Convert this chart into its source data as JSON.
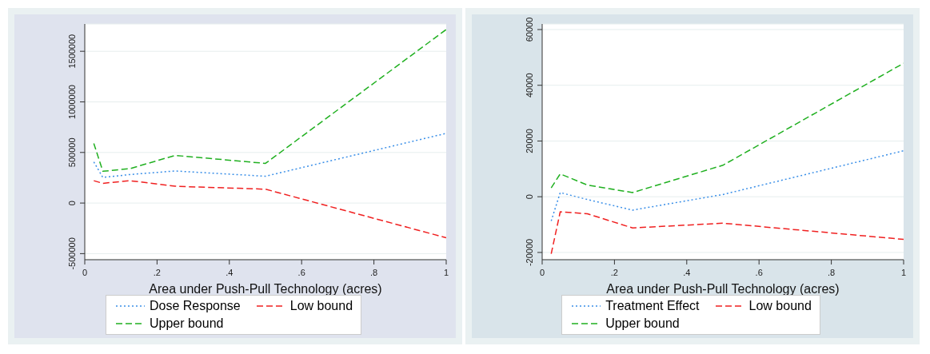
{
  "chart_data": [
    {
      "type": "line",
      "xlabel": "Area under Push-Pull Technology (acres)",
      "x": [
        0.025,
        0.05,
        0.125,
        0.25,
        0.5,
        1
      ],
      "xlim": [
        0,
        1
      ],
      "xticks": [
        {
          "value": 0,
          "label": "0"
        },
        {
          "value": 0.2,
          "label": ".2"
        },
        {
          "value": 0.4,
          "label": ".4"
        },
        {
          "value": 0.6,
          "label": ".6"
        },
        {
          "value": 0.8,
          "label": ".8"
        },
        1
      ],
      "ylim": [
        -560000,
        1770000
      ],
      "yticks": [
        -500000,
        0,
        500000,
        1000000,
        1500000
      ],
      "grid": "y",
      "legend": "bottom",
      "marker": "none",
      "series": [
        {
          "name": "Dose Response",
          "color": "#3a8fe8",
          "line_style": "dotted",
          "values": [
            407000,
            253000,
            282000,
            317000,
            265000,
            689000
          ]
        },
        {
          "name": "Low bound",
          "color": "#f02020",
          "line_style": "dashed",
          "values": [
            221000,
            195000,
            221000,
            166000,
            137000,
            -343000
          ]
        },
        {
          "name": "Upper bound",
          "color": "#20b020",
          "line_style": "dashed",
          "values": [
            590000,
            314000,
            340000,
            471000,
            392000,
            1715000
          ]
        }
      ]
    },
    {
      "type": "line",
      "xlabel": "Area under Push-Pull Technology (acres)",
      "x": [
        0.025,
        0.05,
        0.125,
        0.25,
        0.5,
        1
      ],
      "xlim": [
        0,
        1
      ],
      "xticks": [
        {
          "value": 0,
          "label": "0"
        },
        {
          "value": 0.2,
          "label": ".2"
        },
        {
          "value": 0.4,
          "label": ".4"
        },
        {
          "value": 0.6,
          "label": ".6"
        },
        {
          "value": 0.8,
          "label": ".8"
        },
        1
      ],
      "ylim": [
        -22600,
        62000
      ],
      "yticks": [
        -20000,
        0,
        20000,
        40000,
        60000
      ],
      "grid": "y",
      "legend": "bottom",
      "marker": "none",
      "series": [
        {
          "name": "Treatment Effect",
          "color": "#3a8fe8",
          "line_style": "dotted",
          "values": [
            -8700,
            1500,
            -1000,
            -4800,
            800,
            16500
          ]
        },
        {
          "name": "Low bound",
          "color": "#f02020",
          "line_style": "dashed",
          "values": [
            -20500,
            -5400,
            -6100,
            -11200,
            -9500,
            -15300
          ]
        },
        {
          "name": "Upper bound",
          "color": "#20b020",
          "line_style": "dashed",
          "values": [
            3200,
            8200,
            4200,
            1500,
            11300,
            47900
          ]
        }
      ]
    }
  ]
}
